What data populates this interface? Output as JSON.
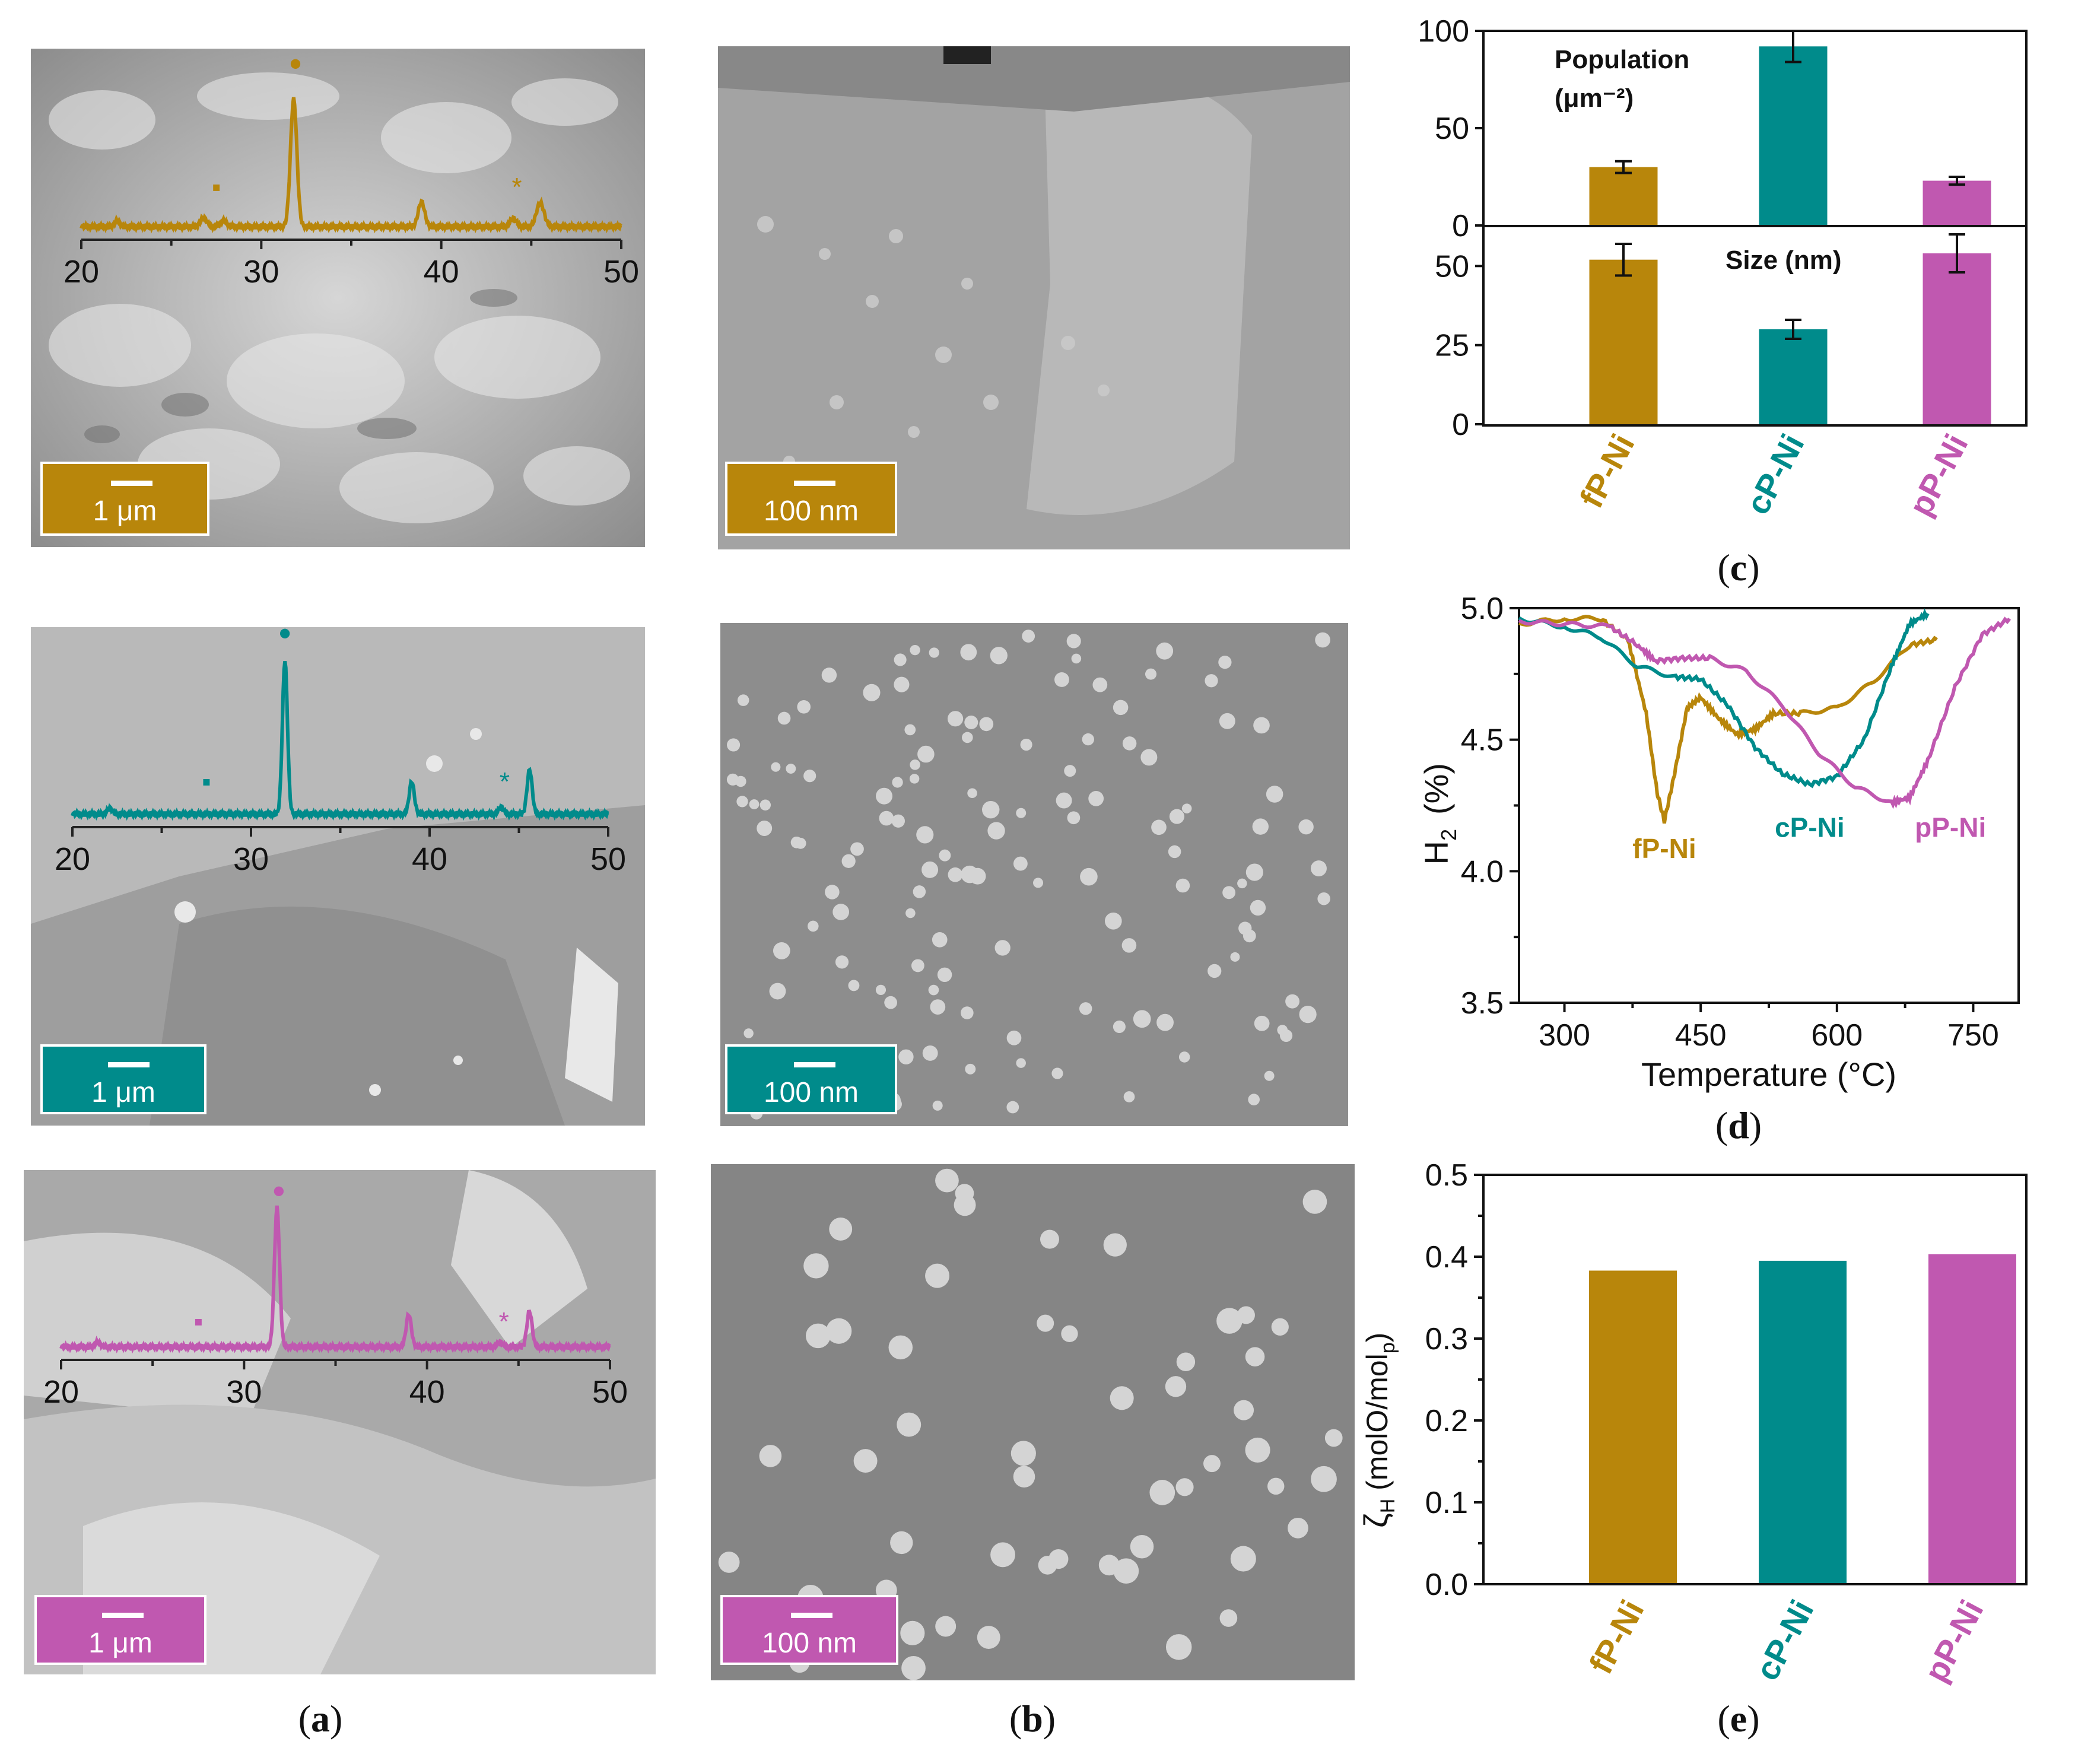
{
  "colors": {
    "fP-Ni": "#b8860b",
    "cP-Ni": "#008b8b",
    "pP-Ni": "#c058b0"
  },
  "panel_a": {
    "caption": "a",
    "scale_label": "1 μm",
    "xrd_ticks": [
      "20",
      "30",
      "40",
      "50"
    ],
    "rows": [
      {
        "sample": "fP-Ni",
        "marker_dot": "•",
        "marker_square": "▪",
        "marker_star": "*"
      },
      {
        "sample": "cP-Ni",
        "marker_dot": "•",
        "marker_square": "▪",
        "marker_star": "*"
      },
      {
        "sample": "pP-Ni",
        "marker_dot": "•",
        "marker_square": "▪",
        "marker_star": "*"
      }
    ]
  },
  "panel_b": {
    "caption": "b",
    "scale_label": "100 nm"
  },
  "chart_data": [
    {
      "panel": "c",
      "type": "bar",
      "caption": "c",
      "categories": [
        "fP-Ni",
        "cP-Ni",
        "pP-Ni"
      ],
      "subplots": [
        {
          "ylabel_line1": "Population",
          "ylabel_line2": "(μm⁻²)",
          "values": [
            30,
            92,
            23
          ],
          "errors": [
            3,
            8,
            2
          ],
          "ylim": [
            0,
            100
          ],
          "yticks": [
            "0",
            "50",
            "100"
          ]
        },
        {
          "ylabel": "Size (nm)",
          "values": [
            52,
            30,
            54
          ],
          "errors": [
            5,
            3,
            6
          ],
          "ylim": [
            0,
            60
          ],
          "yticks": [
            "0",
            "25",
            "50"
          ]
        }
      ]
    },
    {
      "panel": "d",
      "type": "line",
      "caption": "d",
      "xlabel": "Temperature (°C)",
      "ylabel_main": "H",
      "ylabel_sub": "2",
      "ylabel_unit": "(%)",
      "xlim": [
        250,
        800
      ],
      "ylim": [
        3.5,
        5.0
      ],
      "xticks": [
        "300",
        "450",
        "600",
        "750"
      ],
      "yticks": [
        "3.5",
        "4.0",
        "4.5",
        "5.0"
      ],
      "series": [
        {
          "name": "fP-Ni",
          "x": [
            250,
            300,
            340,
            370,
            390,
            402,
            410,
            420,
            435,
            450,
            470,
            490,
            510,
            530,
            560,
            600,
            640,
            680,
            710
          ],
          "y": [
            4.94,
            4.96,
            4.96,
            4.88,
            4.6,
            4.3,
            4.19,
            4.35,
            4.62,
            4.66,
            4.58,
            4.52,
            4.54,
            4.6,
            4.6,
            4.62,
            4.72,
            4.86,
            4.88
          ]
        },
        {
          "name": "cP-Ni",
          "x": [
            250,
            300,
            340,
            380,
            420,
            450,
            480,
            510,
            540,
            570,
            600,
            630,
            660,
            680,
            700
          ],
          "y": [
            4.96,
            4.93,
            4.89,
            4.78,
            4.74,
            4.73,
            4.63,
            4.47,
            4.37,
            4.33,
            4.36,
            4.5,
            4.78,
            4.94,
            4.98
          ]
        },
        {
          "name": "pP-Ni",
          "x": [
            250,
            300,
            350,
            380,
            400,
            430,
            460,
            500,
            540,
            580,
            620,
            660,
            680,
            700,
            730,
            760,
            790
          ],
          "y": [
            4.95,
            4.94,
            4.93,
            4.86,
            4.8,
            4.81,
            4.81,
            4.76,
            4.63,
            4.45,
            4.32,
            4.26,
            4.28,
            4.42,
            4.7,
            4.9,
            4.96
          ]
        }
      ]
    },
    {
      "panel": "e",
      "type": "bar",
      "caption": "e",
      "categories": [
        "fP-Ni",
        "cP-Ni",
        "pP-Ni"
      ],
      "values": [
        0.383,
        0.395,
        0.403
      ],
      "ylim": [
        0.0,
        0.5
      ],
      "yticks": [
        "0.0",
        "0.1",
        "0.2",
        "0.3",
        "0.4",
        "0.5"
      ],
      "ylabel_main": "ζ",
      "ylabel_sub": "H",
      "ylabel_rest": " (molO/mol",
      "ylabel_sub2": "p",
      "ylabel_end": ")"
    }
  ]
}
